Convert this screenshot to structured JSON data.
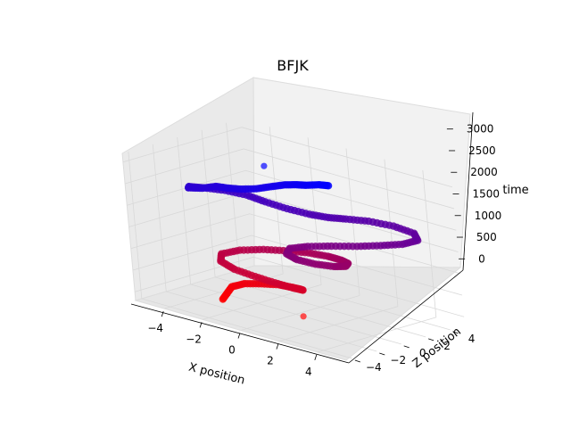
{
  "chart_data": {
    "type": "scatter",
    "title": "BFJK",
    "xlabel": "X position",
    "ylabel": "Z position",
    "zlabel": "time",
    "xlim": [
      -5.5,
      5.5
    ],
    "ylim": [
      -4.5,
      5.2
    ],
    "zlim": [
      -200,
      3200
    ],
    "x_ticks": [
      "−4",
      "−2",
      "0",
      "2",
      "4"
    ],
    "y_ticks": [
      "−4",
      "−2",
      "0",
      "2",
      "4"
    ],
    "z_ticks": [
      "0",
      "500",
      "1000",
      "1500",
      "2000",
      "2500",
      "3000"
    ],
    "x_tick_values": [
      -4,
      -2,
      0,
      2,
      4
    ],
    "y_tick_values": [
      -4,
      -2,
      0,
      2,
      4
    ],
    "z_tick_values": [
      0,
      500,
      1000,
      1500,
      2000,
      2500,
      3000
    ],
    "grid": true,
    "color_encoding": "time (red = early, blue = late)",
    "colors": {
      "early": "#ff0000",
      "late": "#0000ff",
      "pane": "#f2f2f2",
      "grid": "#dddddd"
    },
    "outliers": [
      {
        "x": -2.0,
        "y": 1.5,
        "z": 2850,
        "color": "#3030ff"
      },
      {
        "x": 1.2,
        "y": -1.2,
        "z": 0,
        "color": "#ff3030"
      }
    ],
    "series": [
      {
        "points": [
          [
            -2.5,
            -2.0,
            0
          ],
          [
            -2.7,
            -1.3,
            60
          ],
          [
            -2.9,
            -0.6,
            120
          ],
          [
            -2.6,
            0.0,
            180
          ],
          [
            -1.9,
            0.3,
            240
          ],
          [
            -1.1,
            0.5,
            300
          ],
          [
            -0.3,
            0.3,
            360
          ],
          [
            0.3,
            0.0,
            420
          ],
          [
            0.7,
            -0.3,
            470
          ],
          [
            0.4,
            -0.7,
            520
          ],
          [
            -0.3,
            -1.0,
            570
          ],
          [
            -1.2,
            -1.2,
            620
          ],
          [
            -2.2,
            -1.3,
            670
          ],
          [
            -3.1,
            -1.0,
            720
          ],
          [
            -3.5,
            -0.3,
            780
          ],
          [
            -3.1,
            0.6,
            840
          ],
          [
            -2.3,
            1.3,
            900
          ],
          [
            -1.3,
            1.7,
            960
          ],
          [
            -0.3,
            1.9,
            1020
          ],
          [
            0.7,
            1.9,
            1070
          ],
          [
            1.6,
            1.6,
            1120
          ],
          [
            2.3,
            1.1,
            1170
          ],
          [
            2.7,
            0.3,
            1220
          ],
          [
            2.6,
            -0.5,
            1270
          ],
          [
            2.1,
            -1.2,
            1320
          ],
          [
            1.4,
            -1.6,
            1370
          ],
          [
            0.8,
            -1.5,
            1420
          ],
          [
            0.6,
            -0.9,
            1470
          ],
          [
            1.1,
            -0.2,
            1520
          ],
          [
            1.9,
            0.5,
            1570
          ],
          [
            2.8,
            1.2,
            1620
          ],
          [
            3.6,
            1.9,
            1680
          ],
          [
            4.3,
            2.6,
            1740
          ],
          [
            4.6,
            3.4,
            1800
          ],
          [
            4.1,
            3.9,
            1860
          ],
          [
            3.1,
            3.8,
            1910
          ],
          [
            2.2,
            3.2,
            1960
          ],
          [
            1.6,
            2.3,
            2010
          ],
          [
            1.2,
            1.5,
            2060
          ],
          [
            0.6,
            0.9,
            2110
          ],
          [
            -0.3,
            0.5,
            2160
          ],
          [
            -1.3,
            0.3,
            2210
          ],
          [
            -2.2,
            0.2,
            2260
          ],
          [
            -3.0,
            -0.3,
            2310
          ],
          [
            -3.6,
            -1.1,
            2360
          ],
          [
            -3.9,
            -1.8,
            2410
          ],
          [
            -3.6,
            -2.3,
            2460
          ],
          [
            -3.0,
            -2.1,
            2510
          ],
          [
            -2.6,
            -1.6,
            2560
          ],
          [
            -2.0,
            -1.7,
            2610
          ],
          [
            -1.3,
            -1.6,
            2660
          ],
          [
            -0.7,
            -1.2,
            2710
          ],
          [
            -0.3,
            -0.6,
            2760
          ],
          [
            0.1,
            -0.1,
            2810
          ],
          [
            0.6,
            0.1,
            2860
          ],
          [
            1.1,
            0.1,
            2910
          ],
          [
            1.6,
            0.4,
            2960
          ],
          [
            2.1,
            0.4,
            3000
          ]
        ]
      }
    ]
  }
}
